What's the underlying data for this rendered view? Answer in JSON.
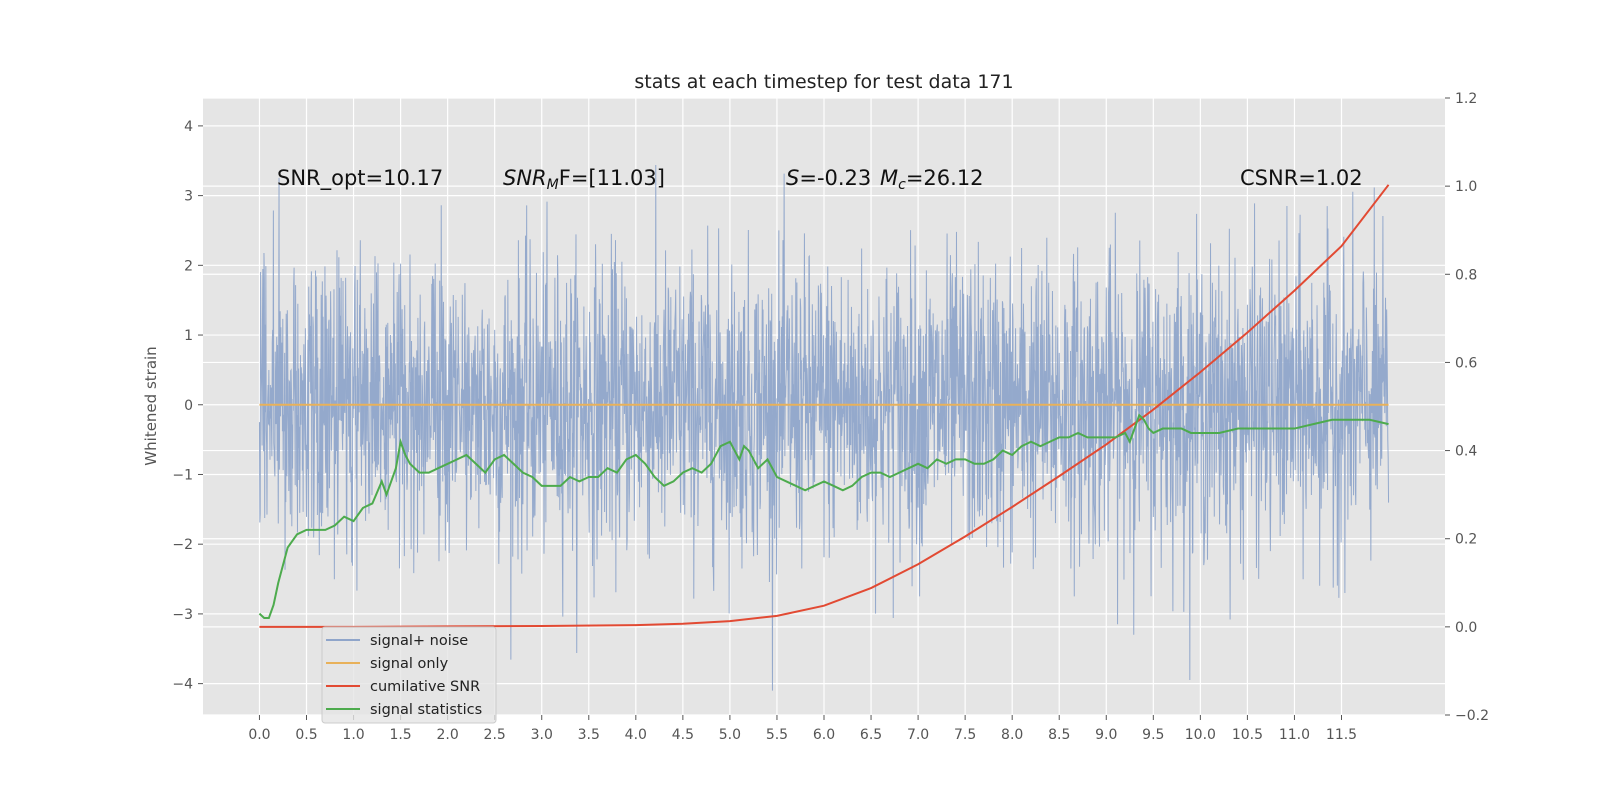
{
  "chart_data": {
    "type": "line",
    "title": "stats at each timestep for test data 171",
    "xlabel": "",
    "ylabel": "Whitened strain",
    "y2label": "",
    "xlim": [
      -0.6,
      12.6
    ],
    "ylim": [
      -4.45,
      4.4
    ],
    "y2lim": [
      -0.2,
      1.2
    ],
    "x_ticks": [
      "0.0",
      "0.5",
      "1.0",
      "1.5",
      "2.0",
      "2.5",
      "3.0",
      "3.5",
      "4.0",
      "4.5",
      "5.0",
      "5.5",
      "6.0",
      "6.5",
      "7.0",
      "7.5",
      "8.0",
      "8.5",
      "9.0",
      "9.5",
      "10.0",
      "10.5",
      "11.0",
      "11.5"
    ],
    "y_ticks": [
      "−4",
      "−3",
      "−2",
      "−1",
      "0",
      "1",
      "2",
      "3",
      "4"
    ],
    "y2_ticks": [
      "−0.2",
      "0.0",
      "0.2",
      "0.4",
      "0.6",
      "0.8",
      "1.0",
      "1.2"
    ],
    "grid": true,
    "legend_position": "lower-left",
    "colors": {
      "background": "#e5e5e5",
      "grid": "#ffffff",
      "noise": "#8fa5ca",
      "signal": "#e8b15a",
      "snr": "#e24a33",
      "stats": "#4dab4d"
    },
    "annotations": {
      "snr_opt": "SNR_opt=10.17",
      "snr_mf_base": "SNR",
      "snr_mf_sub": "M",
      "snr_mf_rest": "F=[11.03]",
      "s_label": "S",
      "s_value": "=-0.23",
      "mc_base": "M",
      "mc_sub": "c",
      "mc_value": "=26.12",
      "csnr": "CSNR=1.02"
    },
    "series": [
      {
        "name": "signal+ noise",
        "axis": "left",
        "style": "dense noise, standard deviation ≈1, x from 0 to 12, sample spacing 0.004",
        "range": [
          -4.1,
          4.0
        ]
      },
      {
        "name": "signal only",
        "axis": "left",
        "x": [
          0,
          12
        ],
        "y": [
          0.0,
          0.0
        ]
      },
      {
        "name": "cumilative SNR",
        "axis": "right",
        "x": [
          0.0,
          1.0,
          2.0,
          3.0,
          4.0,
          4.5,
          5.0,
          5.5,
          6.0,
          6.5,
          7.0,
          7.5,
          8.0,
          8.5,
          9.0,
          9.5,
          10.0,
          10.5,
          11.0,
          11.5,
          12.0
        ],
        "y": [
          0.0,
          0.0,
          0.001,
          0.002,
          0.004,
          0.007,
          0.013,
          0.025,
          0.048,
          0.088,
          0.142,
          0.205,
          0.272,
          0.342,
          0.414,
          0.493,
          0.578,
          0.668,
          0.763,
          0.864,
          1.003
        ]
      },
      {
        "name": "signal statistics",
        "axis": "right",
        "x": [
          0.0,
          0.05,
          0.1,
          0.15,
          0.2,
          0.25,
          0.3,
          0.4,
          0.5,
          0.6,
          0.7,
          0.8,
          0.9,
          1.0,
          1.1,
          1.2,
          1.3,
          1.35,
          1.4,
          1.45,
          1.5,
          1.55,
          1.6,
          1.7,
          1.8,
          1.9,
          2.0,
          2.1,
          2.2,
          2.3,
          2.4,
          2.5,
          2.6,
          2.7,
          2.8,
          2.9,
          3.0,
          3.2,
          3.3,
          3.4,
          3.5,
          3.6,
          3.7,
          3.8,
          3.9,
          4.0,
          4.1,
          4.2,
          4.3,
          4.4,
          4.5,
          4.6,
          4.7,
          4.8,
          4.9,
          5.0,
          5.05,
          5.1,
          5.15,
          5.2,
          5.3,
          5.4,
          5.5,
          5.6,
          5.7,
          5.8,
          5.9,
          6.0,
          6.1,
          6.2,
          6.3,
          6.4,
          6.5,
          6.6,
          6.7,
          6.8,
          6.9,
          7.0,
          7.1,
          7.2,
          7.3,
          7.4,
          7.5,
          7.6,
          7.7,
          7.8,
          7.9,
          8.0,
          8.1,
          8.2,
          8.3,
          8.4,
          8.5,
          8.6,
          8.7,
          8.8,
          8.9,
          9.0,
          9.1,
          9.2,
          9.25,
          9.3,
          9.35,
          9.4,
          9.45,
          9.5,
          9.6,
          9.7,
          9.8,
          9.9,
          10.0,
          10.2,
          10.4,
          10.6,
          10.8,
          11.0,
          11.2,
          11.4,
          11.6,
          11.8,
          12.0
        ],
        "y": [
          0.03,
          0.02,
          0.02,
          0.05,
          0.1,
          0.14,
          0.18,
          0.21,
          0.22,
          0.22,
          0.22,
          0.23,
          0.25,
          0.24,
          0.27,
          0.28,
          0.33,
          0.3,
          0.33,
          0.36,
          0.42,
          0.39,
          0.37,
          0.35,
          0.35,
          0.36,
          0.37,
          0.38,
          0.39,
          0.37,
          0.35,
          0.38,
          0.39,
          0.37,
          0.35,
          0.34,
          0.32,
          0.32,
          0.34,
          0.33,
          0.34,
          0.34,
          0.36,
          0.35,
          0.38,
          0.39,
          0.37,
          0.34,
          0.32,
          0.33,
          0.35,
          0.36,
          0.35,
          0.37,
          0.41,
          0.42,
          0.4,
          0.38,
          0.41,
          0.4,
          0.36,
          0.38,
          0.34,
          0.33,
          0.32,
          0.31,
          0.32,
          0.33,
          0.32,
          0.31,
          0.32,
          0.34,
          0.35,
          0.35,
          0.34,
          0.35,
          0.36,
          0.37,
          0.36,
          0.38,
          0.37,
          0.38,
          0.38,
          0.37,
          0.37,
          0.38,
          0.4,
          0.39,
          0.41,
          0.42,
          0.41,
          0.42,
          0.43,
          0.43,
          0.44,
          0.43,
          0.43,
          0.43,
          0.43,
          0.44,
          0.42,
          0.45,
          0.48,
          0.47,
          0.45,
          0.44,
          0.45,
          0.45,
          0.45,
          0.44,
          0.44,
          0.44,
          0.45,
          0.45,
          0.45,
          0.45,
          0.46,
          0.47,
          0.47,
          0.47,
          0.46
        ]
      }
    ]
  }
}
